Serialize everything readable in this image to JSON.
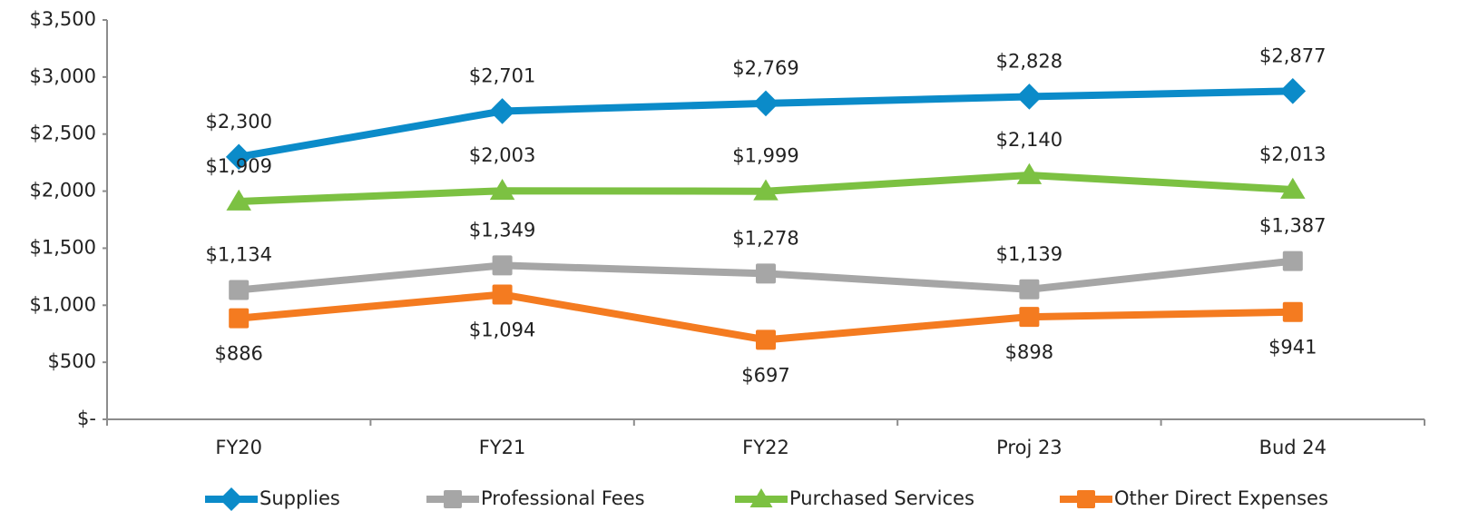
{
  "chart_data": {
    "type": "line",
    "categories": [
      "FY20",
      "FY21",
      "FY22",
      "Proj 23",
      "Bud 24"
    ],
    "series": [
      {
        "name": "Supplies",
        "color": "#0b8bc9",
        "marker": "diamond",
        "values": [
          2300,
          2701,
          2769,
          2828,
          2877
        ],
        "value_labels": [
          "$2,300",
          "$2,701",
          "$2,769",
          "$2,828",
          "$2,877"
        ]
      },
      {
        "name": "Professional Fees",
        "color": "#a6a6a6",
        "marker": "square",
        "values": [
          1134,
          1349,
          1278,
          1139,
          1387
        ],
        "value_labels": [
          "$1,134",
          "$1,349",
          "$1,278",
          "$1,139",
          "$1,387"
        ]
      },
      {
        "name": "Purchased Services",
        "color": "#7cc142",
        "marker": "triangle",
        "values": [
          1909,
          2003,
          1999,
          2140,
          2013
        ],
        "value_labels": [
          "$1,909",
          "$2,003",
          "$1,999",
          "$2,140",
          "$2,013"
        ]
      },
      {
        "name": "Other Direct Expenses",
        "color": "#f47b20",
        "marker": "square",
        "values": [
          886,
          1094,
          697,
          898,
          941
        ],
        "value_labels": [
          "$886",
          "$1,094",
          "$697",
          "$898",
          "$941"
        ]
      }
    ],
    "ylim": [
      0,
      3500
    ],
    "yticks": [
      {
        "value": 0,
        "label": "$-"
      },
      {
        "value": 500,
        "label": "$500"
      },
      {
        "value": 1000,
        "label": "$1,000"
      },
      {
        "value": 1500,
        "label": "$1,500"
      },
      {
        "value": 2000,
        "label": "$2,000"
      },
      {
        "value": 2500,
        "label": "$2,500"
      },
      {
        "value": 3000,
        "label": "$3,000"
      },
      {
        "value": 3500,
        "label": "$3,500"
      }
    ],
    "grid": false,
    "legend": "bottom"
  }
}
